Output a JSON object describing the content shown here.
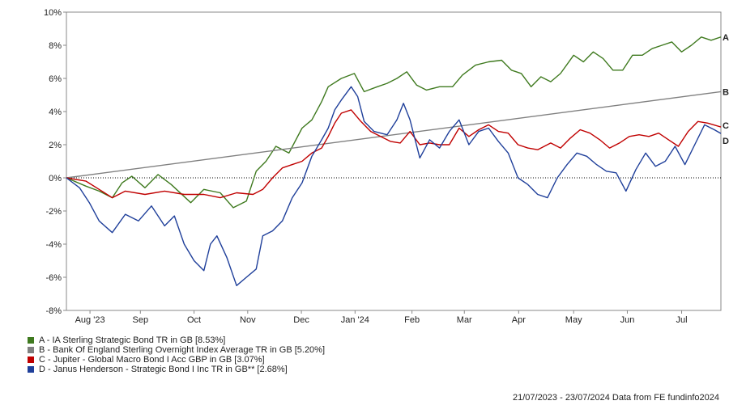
{
  "chart_data": {
    "type": "line",
    "y_ticks": [
      "10%",
      "8%",
      "6%",
      "4%",
      "2%",
      "0%",
      "-2%",
      "-4%",
      "-6%",
      "-8%"
    ],
    "ylim": [
      -8,
      10
    ],
    "x_ticks": [
      "Aug '23",
      "Sep",
      "Oct",
      "Nov",
      "Dec",
      "Jan '24",
      "Feb",
      "Mar",
      "Apr",
      "May",
      "Jun",
      "Jul"
    ],
    "x_tick_values": [
      0.036,
      0.113,
      0.195,
      0.277,
      0.359,
      0.441,
      0.528,
      0.608,
      0.691,
      0.775,
      0.857,
      0.94
    ],
    "zero_line": "dotted",
    "grid": false,
    "series": [
      {
        "name": "A - IA Sterling Strategic Bond TR in GB [8.53%]",
        "end_label": "A",
        "color": "#3f7a1f",
        "points": [
          [
            0,
            0
          ],
          [
            0.03,
            -0.5
          ],
          [
            0.05,
            -0.8
          ],
          [
            0.07,
            -1.2
          ],
          [
            0.085,
            -0.3
          ],
          [
            0.1,
            0.1
          ],
          [
            0.12,
            -0.6
          ],
          [
            0.14,
            0.2
          ],
          [
            0.16,
            -0.4
          ],
          [
            0.19,
            -1.5
          ],
          [
            0.21,
            -0.7
          ],
          [
            0.235,
            -0.9
          ],
          [
            0.255,
            -1.8
          ],
          [
            0.275,
            -1.4
          ],
          [
            0.29,
            0.4
          ],
          [
            0.305,
            1.0
          ],
          [
            0.32,
            1.9
          ],
          [
            0.34,
            1.5
          ],
          [
            0.36,
            3.0
          ],
          [
            0.375,
            3.5
          ],
          [
            0.39,
            4.6
          ],
          [
            0.4,
            5.5
          ],
          [
            0.42,
            6.0
          ],
          [
            0.44,
            6.3
          ],
          [
            0.455,
            5.2
          ],
          [
            0.475,
            5.5
          ],
          [
            0.49,
            5.7
          ],
          [
            0.505,
            6.0
          ],
          [
            0.52,
            6.4
          ],
          [
            0.535,
            5.6
          ],
          [
            0.55,
            5.3
          ],
          [
            0.57,
            5.5
          ],
          [
            0.59,
            5.5
          ],
          [
            0.605,
            6.2
          ],
          [
            0.625,
            6.8
          ],
          [
            0.645,
            7.0
          ],
          [
            0.665,
            7.1
          ],
          [
            0.68,
            6.5
          ],
          [
            0.695,
            6.3
          ],
          [
            0.71,
            5.5
          ],
          [
            0.725,
            6.1
          ],
          [
            0.74,
            5.8
          ],
          [
            0.755,
            6.3
          ],
          [
            0.775,
            7.4
          ],
          [
            0.79,
            7.0
          ],
          [
            0.805,
            7.6
          ],
          [
            0.82,
            7.2
          ],
          [
            0.835,
            6.5
          ],
          [
            0.85,
            6.5
          ],
          [
            0.865,
            7.4
          ],
          [
            0.88,
            7.4
          ],
          [
            0.895,
            7.8
          ],
          [
            0.91,
            8.0
          ],
          [
            0.925,
            8.2
          ],
          [
            0.94,
            7.6
          ],
          [
            0.955,
            8.0
          ],
          [
            0.97,
            8.5
          ],
          [
            0.985,
            8.3
          ],
          [
            1.0,
            8.5
          ]
        ]
      },
      {
        "name": "B - Bank Of England Sterling Overnight Index Average TR in GB [5.20%]",
        "end_label": "B",
        "color": "#808080",
        "points": [
          [
            0,
            0
          ],
          [
            1.0,
            5.2
          ]
        ]
      },
      {
        "name": "C - Jupiter - Global Macro Bond I Acc GBP in GB [3.07%]",
        "end_label": "C",
        "color": "#c00000",
        "points": [
          [
            0,
            0
          ],
          [
            0.03,
            -0.2
          ],
          [
            0.05,
            -0.7
          ],
          [
            0.07,
            -1.2
          ],
          [
            0.09,
            -0.8
          ],
          [
            0.12,
            -1.0
          ],
          [
            0.15,
            -0.8
          ],
          [
            0.18,
            -1.0
          ],
          [
            0.21,
            -1.0
          ],
          [
            0.235,
            -1.2
          ],
          [
            0.26,
            -0.9
          ],
          [
            0.285,
            -1.0
          ],
          [
            0.3,
            -0.7
          ],
          [
            0.315,
            0.0
          ],
          [
            0.33,
            0.6
          ],
          [
            0.345,
            0.8
          ],
          [
            0.36,
            1.0
          ],
          [
            0.375,
            1.5
          ],
          [
            0.39,
            1.8
          ],
          [
            0.4,
            2.5
          ],
          [
            0.41,
            3.3
          ],
          [
            0.42,
            3.9
          ],
          [
            0.435,
            4.1
          ],
          [
            0.45,
            3.4
          ],
          [
            0.465,
            2.8
          ],
          [
            0.48,
            2.5
          ],
          [
            0.495,
            2.2
          ],
          [
            0.51,
            2.1
          ],
          [
            0.525,
            2.8
          ],
          [
            0.54,
            2.0
          ],
          [
            0.555,
            2.1
          ],
          [
            0.57,
            2.0
          ],
          [
            0.585,
            2.0
          ],
          [
            0.6,
            3.0
          ],
          [
            0.615,
            2.5
          ],
          [
            0.63,
            2.9
          ],
          [
            0.645,
            3.2
          ],
          [
            0.66,
            2.8
          ],
          [
            0.675,
            2.7
          ],
          [
            0.69,
            2.0
          ],
          [
            0.705,
            1.8
          ],
          [
            0.72,
            1.7
          ],
          [
            0.74,
            2.1
          ],
          [
            0.755,
            1.8
          ],
          [
            0.77,
            2.4
          ],
          [
            0.785,
            2.9
          ],
          [
            0.8,
            2.7
          ],
          [
            0.815,
            2.3
          ],
          [
            0.83,
            1.8
          ],
          [
            0.845,
            2.1
          ],
          [
            0.86,
            2.5
          ],
          [
            0.875,
            2.6
          ],
          [
            0.89,
            2.5
          ],
          [
            0.905,
            2.7
          ],
          [
            0.92,
            2.3
          ],
          [
            0.935,
            1.9
          ],
          [
            0.95,
            2.8
          ],
          [
            0.965,
            3.4
          ],
          [
            0.98,
            3.3
          ],
          [
            1.0,
            3.07
          ]
        ]
      },
      {
        "name": "D - Janus Henderson - Strategic Bond I Inc TR in GB** [2.68%]",
        "end_label": "D",
        "color": "#1f3f9a",
        "points": [
          [
            0,
            0
          ],
          [
            0.02,
            -0.6
          ],
          [
            0.035,
            -1.5
          ],
          [
            0.05,
            -2.6
          ],
          [
            0.07,
            -3.3
          ],
          [
            0.09,
            -2.2
          ],
          [
            0.11,
            -2.6
          ],
          [
            0.13,
            -1.7
          ],
          [
            0.15,
            -2.9
          ],
          [
            0.165,
            -2.3
          ],
          [
            0.18,
            -4.0
          ],
          [
            0.195,
            -5.0
          ],
          [
            0.21,
            -5.6
          ],
          [
            0.22,
            -4.0
          ],
          [
            0.23,
            -3.5
          ],
          [
            0.245,
            -4.8
          ],
          [
            0.26,
            -6.5
          ],
          [
            0.275,
            -6.0
          ],
          [
            0.29,
            -5.5
          ],
          [
            0.3,
            -3.5
          ],
          [
            0.315,
            -3.2
          ],
          [
            0.33,
            -2.6
          ],
          [
            0.345,
            -1.2
          ],
          [
            0.36,
            -0.3
          ],
          [
            0.375,
            1.3
          ],
          [
            0.39,
            2.3
          ],
          [
            0.4,
            3.0
          ],
          [
            0.41,
            4.1
          ],
          [
            0.42,
            4.7
          ],
          [
            0.435,
            5.5
          ],
          [
            0.445,
            4.9
          ],
          [
            0.455,
            3.4
          ],
          [
            0.47,
            2.8
          ],
          [
            0.49,
            2.6
          ],
          [
            0.505,
            3.5
          ],
          [
            0.515,
            4.5
          ],
          [
            0.525,
            3.5
          ],
          [
            0.54,
            1.2
          ],
          [
            0.555,
            2.3
          ],
          [
            0.57,
            1.8
          ],
          [
            0.585,
            2.8
          ],
          [
            0.6,
            3.5
          ],
          [
            0.615,
            2.0
          ],
          [
            0.63,
            2.8
          ],
          [
            0.645,
            3.0
          ],
          [
            0.66,
            2.2
          ],
          [
            0.675,
            1.5
          ],
          [
            0.69,
            0.0
          ],
          [
            0.705,
            -0.4
          ],
          [
            0.72,
            -1.0
          ],
          [
            0.735,
            -1.2
          ],
          [
            0.75,
            0.0
          ],
          [
            0.765,
            0.8
          ],
          [
            0.78,
            1.5
          ],
          [
            0.795,
            1.3
          ],
          [
            0.81,
            0.8
          ],
          [
            0.825,
            0.4
          ],
          [
            0.84,
            0.3
          ],
          [
            0.855,
            -0.8
          ],
          [
            0.87,
            0.5
          ],
          [
            0.885,
            1.5
          ],
          [
            0.9,
            0.7
          ],
          [
            0.915,
            1.0
          ],
          [
            0.93,
            1.9
          ],
          [
            0.945,
            0.8
          ],
          [
            0.96,
            2.0
          ],
          [
            0.975,
            3.2
          ],
          [
            0.99,
            2.9
          ],
          [
            1.0,
            2.68
          ]
        ]
      }
    ]
  },
  "footer": {
    "text": "21/07/2023 - 23/07/2024 Data from FE fundinfo2024"
  }
}
